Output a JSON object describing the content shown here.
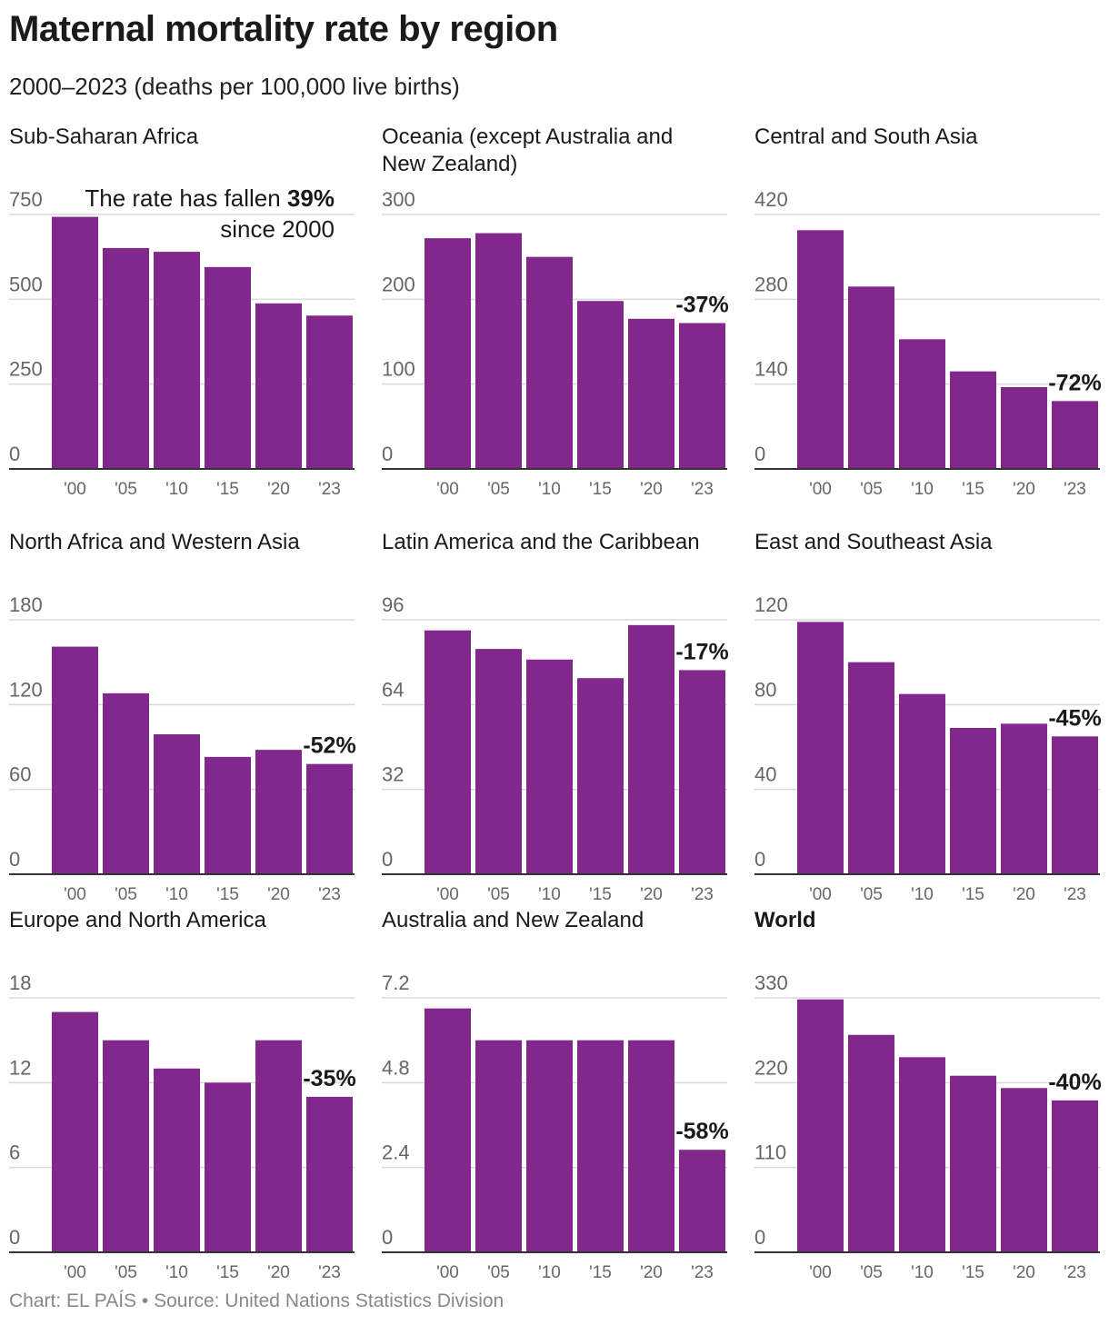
{
  "header": {
    "title": "Maternal mortality rate by region",
    "subtitle": "2000–2023 (deaths per 100,000 live births)"
  },
  "footer": "Chart: EL PAÍS • Source: United Nations Statistics Division",
  "colors": {
    "bar": "#82288c",
    "grid": "#d9d9d9",
    "axis": "#333333",
    "tick": "#666666"
  },
  "chart_data": [
    {
      "type": "bar",
      "title": "Sub-Saharan Africa",
      "title_bold": false,
      "categories": [
        "'00",
        "'05",
        "'10",
        "'15",
        "'20",
        "'23"
      ],
      "values": [
        743,
        651,
        640,
        595,
        488,
        452
      ],
      "yticks": [
        "0",
        "250",
        "500",
        "750"
      ],
      "ylim": [
        0,
        750
      ],
      "annotation": {
        "pre": "The rate has fallen ",
        "bold": "39%",
        "line2": "since 2000"
      }
    },
    {
      "type": "bar",
      "title": "Oceania (except Australia and New Zealand)",
      "title_lines": [
        "Oceania (except Australia and",
        "New Zealand)"
      ],
      "title_bold": false,
      "categories": [
        "'00",
        "'05",
        "'10",
        "'15",
        "'20",
        "'23"
      ],
      "values": [
        272,
        278,
        250,
        198,
        177,
        172
      ],
      "yticks": [
        "0",
        "100",
        "200",
        "300"
      ],
      "ylim": [
        0,
        300
      ],
      "label": "-37%"
    },
    {
      "type": "bar",
      "title": "Central and South Asia",
      "title_bold": false,
      "categories": [
        "'00",
        "'05",
        "'10",
        "'15",
        "'20",
        "'23"
      ],
      "values": [
        394,
        301,
        214,
        161,
        135,
        112
      ],
      "yticks": [
        "0",
        "140",
        "280",
        "420"
      ],
      "ylim": [
        0,
        420
      ],
      "label": "-72%"
    },
    {
      "type": "bar",
      "title": "North Africa and Western Asia",
      "title_bold": false,
      "categories": [
        "'00",
        "'05",
        "'10",
        "'15",
        "'20",
        "'23"
      ],
      "values": [
        161,
        128,
        99,
        83,
        88,
        78
      ],
      "yticks": [
        "0",
        "60",
        "120",
        "180"
      ],
      "ylim": [
        0,
        180
      ],
      "label": "-52%"
    },
    {
      "type": "bar",
      "title": "Latin America and the Caribbean",
      "title_bold": false,
      "categories": [
        "'00",
        "'05",
        "'10",
        "'15",
        "'20",
        "'23"
      ],
      "values": [
        92,
        85,
        81,
        74,
        94,
        77
      ],
      "yticks": [
        "0",
        "32",
        "64",
        "96"
      ],
      "ylim": [
        0,
        96
      ],
      "label": "-17%"
    },
    {
      "type": "bar",
      "title": "East and Southeast Asia",
      "title_bold": false,
      "categories": [
        "'00",
        "'05",
        "'10",
        "'15",
        "'20",
        "'23"
      ],
      "values": [
        119,
        100,
        85,
        69,
        71,
        65
      ],
      "yticks": [
        "0",
        "40",
        "80",
        "120"
      ],
      "ylim": [
        0,
        120
      ],
      "label": "-45%"
    },
    {
      "type": "bar",
      "title": "Europe and North America",
      "title_bold": false,
      "categories": [
        "'00",
        "'05",
        "'10",
        "'15",
        "'20",
        "'23"
      ],
      "values": [
        17,
        15,
        13,
        12,
        15,
        11
      ],
      "yticks": [
        "0",
        "6",
        "12",
        "18"
      ],
      "ylim": [
        0,
        18
      ],
      "label": "-35%"
    },
    {
      "type": "bar",
      "title": "Australia and New Zealand",
      "title_bold": false,
      "categories": [
        "'00",
        "'05",
        "'10",
        "'15",
        "'20",
        "'23"
      ],
      "values": [
        6.9,
        6.0,
        6.0,
        6.0,
        6.0,
        2.9
      ],
      "yticks": [
        "0",
        "2.4",
        "4.8",
        "7.2"
      ],
      "ylim": [
        0,
        7.2
      ],
      "label": "-58%"
    },
    {
      "type": "bar",
      "title": "World",
      "title_bold": true,
      "categories": [
        "'00",
        "'05",
        "'10",
        "'15",
        "'20",
        "'23"
      ],
      "values": [
        328,
        282,
        253,
        229,
        213,
        197
      ],
      "yticks": [
        "0",
        "110",
        "220",
        "330"
      ],
      "ylim": [
        0,
        330
      ],
      "label": "-40%"
    }
  ]
}
